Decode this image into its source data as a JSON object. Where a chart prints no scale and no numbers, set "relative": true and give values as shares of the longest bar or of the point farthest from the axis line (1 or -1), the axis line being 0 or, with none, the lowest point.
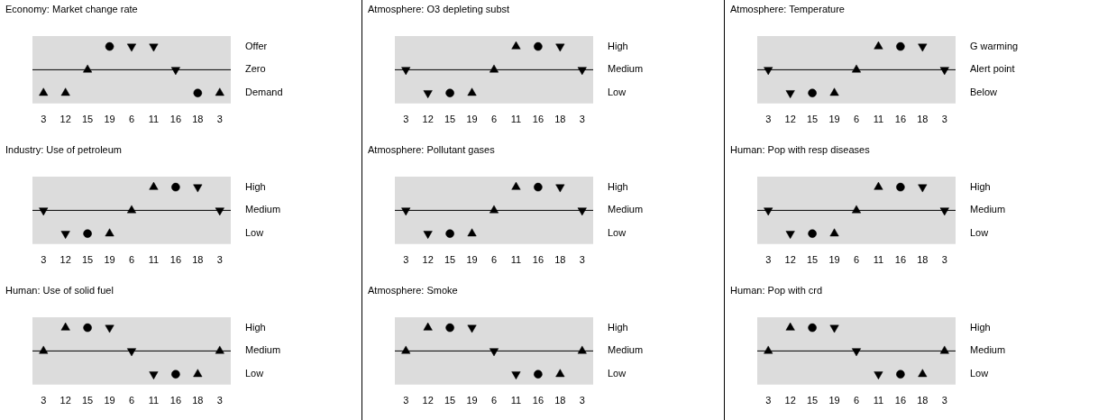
{
  "chart_data": [
    {
      "type": "scatter",
      "title": "Economy: Market change rate",
      "categories": [
        "3",
        "12",
        "15",
        "19",
        "6",
        "11",
        "16",
        "18",
        "3"
      ],
      "relative": true,
      "annotations": [
        "Offer",
        "Zero",
        "Demand"
      ],
      "ref_lines": [
        {
          "axis": "y",
          "value": 0
        }
      ],
      "series": [
        {
          "marker": "triangle",
          "color": "#000000",
          "values": [
            -1,
            -1,
            0,
            null,
            null,
            null,
            null,
            null,
            -1
          ]
        },
        {
          "marker": "circle",
          "color": "#000000",
          "values": [
            null,
            null,
            null,
            1,
            null,
            null,
            null,
            -1,
            null
          ]
        },
        {
          "marker": "triangle-down",
          "color": "#000000",
          "values": [
            null,
            null,
            null,
            null,
            1,
            1,
            0,
            null,
            null
          ]
        }
      ]
    },
    {
      "type": "scatter",
      "title": "Atmosphere: O3 depleting subst",
      "categories": [
        "3",
        "12",
        "15",
        "19",
        "6",
        "11",
        "16",
        "18",
        "3"
      ],
      "relative": true,
      "annotations": [
        "High",
        "Medium",
        "Low"
      ],
      "ref_lines": [
        {
          "axis": "y",
          "value": 0
        }
      ],
      "series": [
        {
          "marker": "triangle",
          "color": "#000000",
          "values": [
            null,
            null,
            null,
            -1,
            0,
            1,
            null,
            null,
            null
          ]
        },
        {
          "marker": "circle",
          "color": "#000000",
          "values": [
            null,
            null,
            -1,
            null,
            null,
            null,
            1,
            null,
            null
          ]
        },
        {
          "marker": "triangle-down",
          "color": "#000000",
          "values": [
            0,
            -1,
            null,
            null,
            null,
            null,
            null,
            1,
            0
          ]
        }
      ]
    },
    {
      "type": "scatter",
      "title": "Atmosphere: Temperature",
      "categories": [
        "3",
        "12",
        "15",
        "19",
        "6",
        "11",
        "16",
        "18",
        "3"
      ],
      "relative": true,
      "annotations": [
        "G warming",
        "Alert point",
        "Below"
      ],
      "ref_lines": [
        {
          "axis": "y",
          "value": 0
        }
      ],
      "series": [
        {
          "marker": "triangle",
          "color": "#000000",
          "values": [
            null,
            null,
            null,
            -1,
            0,
            1,
            null,
            null,
            null
          ]
        },
        {
          "marker": "circle",
          "color": "#000000",
          "values": [
            null,
            null,
            -1,
            null,
            null,
            null,
            1,
            null,
            null
          ]
        },
        {
          "marker": "triangle-down",
          "color": "#000000",
          "values": [
            0,
            -1,
            null,
            null,
            null,
            null,
            null,
            1,
            0
          ]
        }
      ]
    },
    {
      "type": "scatter",
      "title": "Industry: Use of petroleum",
      "categories": [
        "3",
        "12",
        "15",
        "19",
        "6",
        "11",
        "16",
        "18",
        "3"
      ],
      "relative": true,
      "annotations": [
        "High",
        "Medium",
        "Low"
      ],
      "ref_lines": [
        {
          "axis": "y",
          "value": 0
        }
      ],
      "series": [
        {
          "marker": "triangle",
          "color": "#000000",
          "values": [
            null,
            null,
            null,
            -1,
            0,
            1,
            null,
            null,
            null
          ]
        },
        {
          "marker": "circle",
          "color": "#000000",
          "values": [
            null,
            null,
            -1,
            null,
            null,
            null,
            1,
            null,
            null
          ]
        },
        {
          "marker": "triangle-down",
          "color": "#000000",
          "values": [
            0,
            -1,
            null,
            null,
            null,
            null,
            null,
            1,
            0
          ]
        }
      ]
    },
    {
      "type": "scatter",
      "title": "Atmosphere: Pollutant gases",
      "categories": [
        "3",
        "12",
        "15",
        "19",
        "6",
        "11",
        "16",
        "18",
        "3"
      ],
      "relative": true,
      "annotations": [
        "High",
        "Medium",
        "Low"
      ],
      "ref_lines": [
        {
          "axis": "y",
          "value": 0
        }
      ],
      "series": [
        {
          "marker": "triangle",
          "color": "#000000",
          "values": [
            null,
            null,
            null,
            -1,
            0,
            1,
            null,
            null,
            null
          ]
        },
        {
          "marker": "circle",
          "color": "#000000",
          "values": [
            null,
            null,
            -1,
            null,
            null,
            null,
            1,
            null,
            null
          ]
        },
        {
          "marker": "triangle-down",
          "color": "#000000",
          "values": [
            0,
            -1,
            null,
            null,
            null,
            null,
            null,
            1,
            0
          ]
        }
      ]
    },
    {
      "type": "scatter",
      "title": "Human: Pop with resp diseases",
      "categories": [
        "3",
        "12",
        "15",
        "19",
        "6",
        "11",
        "16",
        "18",
        "3"
      ],
      "relative": true,
      "annotations": [
        "High",
        "Medium",
        "Low"
      ],
      "ref_lines": [
        {
          "axis": "y",
          "value": 0
        }
      ],
      "series": [
        {
          "marker": "triangle",
          "color": "#000000",
          "values": [
            null,
            null,
            null,
            -1,
            0,
            1,
            null,
            null,
            null
          ]
        },
        {
          "marker": "circle",
          "color": "#000000",
          "values": [
            null,
            null,
            -1,
            null,
            null,
            null,
            1,
            null,
            null
          ]
        },
        {
          "marker": "triangle-down",
          "color": "#000000",
          "values": [
            0,
            -1,
            null,
            null,
            null,
            null,
            null,
            1,
            0
          ]
        }
      ]
    },
    {
      "type": "scatter",
      "title": "Human: Use of solid fuel",
      "categories": [
        "3",
        "12",
        "15",
        "19",
        "6",
        "11",
        "16",
        "18",
        "3"
      ],
      "relative": true,
      "annotations": [
        "High",
        "Medium",
        "Low"
      ],
      "ref_lines": [
        {
          "axis": "y",
          "value": 0
        }
      ],
      "series": [
        {
          "marker": "triangle",
          "color": "#000000",
          "values": [
            0,
            1,
            null,
            null,
            null,
            null,
            null,
            -1,
            0
          ]
        },
        {
          "marker": "circle",
          "color": "#000000",
          "values": [
            null,
            null,
            1,
            null,
            null,
            null,
            -1,
            null,
            null
          ]
        },
        {
          "marker": "triangle-down",
          "color": "#000000",
          "values": [
            null,
            null,
            null,
            1,
            0,
            -1,
            null,
            null,
            null
          ]
        }
      ]
    },
    {
      "type": "scatter",
      "title": "Atmosphere: Smoke",
      "categories": [
        "3",
        "12",
        "15",
        "19",
        "6",
        "11",
        "16",
        "18",
        "3"
      ],
      "relative": true,
      "annotations": [
        "High",
        "Medium",
        "Low"
      ],
      "ref_lines": [
        {
          "axis": "y",
          "value": 0
        }
      ],
      "series": [
        {
          "marker": "triangle",
          "color": "#000000",
          "values": [
            0,
            1,
            null,
            null,
            null,
            null,
            null,
            -1,
            0
          ]
        },
        {
          "marker": "circle",
          "color": "#000000",
          "values": [
            null,
            null,
            1,
            null,
            null,
            null,
            -1,
            null,
            null
          ]
        },
        {
          "marker": "triangle-down",
          "color": "#000000",
          "values": [
            null,
            null,
            null,
            1,
            0,
            -1,
            null,
            null,
            null
          ]
        }
      ]
    },
    {
      "type": "scatter",
      "title": "Human: Pop with crd",
      "categories": [
        "3",
        "12",
        "15",
        "19",
        "6",
        "11",
        "16",
        "18",
        "3"
      ],
      "relative": true,
      "annotations": [
        "High",
        "Medium",
        "Low"
      ],
      "ref_lines": [
        {
          "axis": "y",
          "value": 0
        }
      ],
      "series": [
        {
          "marker": "triangle",
          "color": "#000000",
          "values": [
            0,
            1,
            null,
            null,
            null,
            null,
            null,
            -1,
            0
          ]
        },
        {
          "marker": "circle",
          "color": "#000000",
          "values": [
            null,
            null,
            1,
            null,
            null,
            null,
            -1,
            null,
            null
          ]
        },
        {
          "marker": "triangle-down",
          "color": "#000000",
          "values": [
            null,
            null,
            null,
            1,
            0,
            -1,
            null,
            null,
            null
          ]
        }
      ]
    }
  ]
}
